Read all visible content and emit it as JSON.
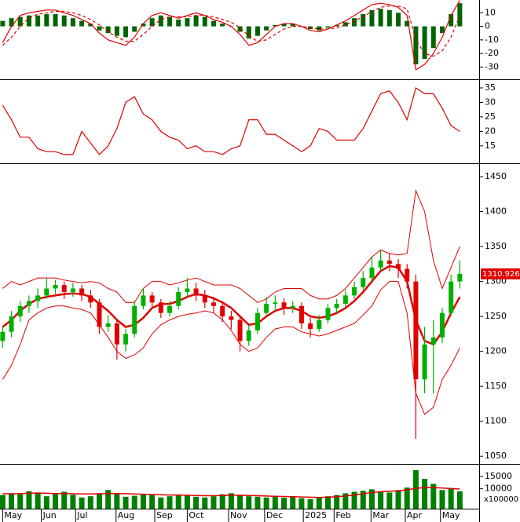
{
  "chart_data": [
    {
      "type": "macd",
      "ylim": [
        -39,
        19.4
      ],
      "yticks": [
        10,
        0,
        -10,
        -20,
        -30
      ],
      "bars": {
        "color": "#006400",
        "values": [
          4,
          6,
          7,
          8,
          8,
          9,
          9,
          8,
          6,
          4,
          2,
          -3,
          -5,
          -7,
          -8,
          -4,
          2,
          6,
          8,
          7,
          5,
          6,
          8,
          7,
          4,
          2,
          0,
          -4,
          -9,
          -7,
          -3,
          1,
          2,
          2,
          0,
          -2,
          -3,
          -1,
          1,
          3,
          6,
          9,
          12,
          13,
          12,
          10,
          4,
          -28,
          -24,
          -16,
          -5,
          9,
          17
        ]
      },
      "series": [
        {
          "color": "#e00000",
          "dashed": false,
          "values": [
            -12,
            0,
            8,
            10,
            11,
            12,
            12,
            10,
            8,
            5,
            2,
            -5,
            -10,
            -12,
            -14,
            -8,
            2,
            8,
            10,
            8,
            6,
            8,
            10,
            8,
            5,
            3,
            0,
            -6,
            -14,
            -12,
            -6,
            0,
            2,
            2,
            0,
            -3,
            -4,
            -2,
            1,
            4,
            8,
            12,
            16,
            17,
            16,
            14,
            8,
            -32,
            -28,
            -20,
            -8,
            8,
            19
          ]
        },
        {
          "color": "#e00000",
          "dashed": true,
          "values": [
            -14,
            -8,
            0,
            6,
            9,
            10,
            11,
            11,
            10,
            8,
            5,
            1,
            -4,
            -8,
            -11,
            -11,
            -6,
            0,
            5,
            7,
            7,
            7,
            8,
            8,
            7,
            5,
            3,
            -1,
            -7,
            -11,
            -10,
            -6,
            -2,
            0,
            0,
            -1,
            -2,
            -2,
            -1,
            1,
            4,
            7,
            11,
            14,
            15,
            15,
            13,
            -10,
            -20,
            -22,
            -18,
            -8,
            8
          ]
        }
      ]
    },
    {
      "type": "line",
      "ylim": [
        9,
        37.7
      ],
      "yticks": [
        35,
        30,
        25,
        20,
        15
      ],
      "series": [
        {
          "color": "#e00000",
          "dashed": false,
          "values": [
            29,
            24,
            18,
            18,
            14,
            13,
            13,
            12,
            12,
            20,
            16,
            12,
            15,
            21,
            30,
            32,
            26,
            24,
            20,
            18,
            17,
            14,
            15,
            13,
            13,
            12,
            14,
            15,
            24,
            24,
            19,
            19,
            17,
            15,
            13,
            15,
            21,
            20,
            17,
            17,
            17,
            21,
            27,
            33,
            34,
            30,
            24,
            35,
            33,
            33,
            28,
            22,
            20
          ]
        }
      ]
    },
    {
      "type": "candlestick",
      "ylim": [
        1039,
        1468
      ],
      "yticks": [
        1450,
        1400,
        1350,
        1300,
        1250,
        1200,
        1150,
        1100,
        1050
      ],
      "up_color": "#00b000",
      "down_color": "#e00000",
      "candles": [
        [
          1215,
          1235,
          1205,
          1228
        ],
        [
          1228,
          1258,
          1220,
          1250
        ],
        [
          1250,
          1272,
          1242,
          1265
        ],
        [
          1265,
          1280,
          1255,
          1272
        ],
        [
          1272,
          1290,
          1262,
          1280
        ],
        [
          1280,
          1305,
          1275,
          1290
        ],
        [
          1290,
          1302,
          1282,
          1295
        ],
        [
          1295,
          1300,
          1275,
          1285
        ],
        [
          1285,
          1298,
          1278,
          1290
        ],
        [
          1290,
          1295,
          1272,
          1280
        ],
        [
          1280,
          1288,
          1262,
          1270
        ],
        [
          1270,
          1275,
          1225,
          1235
        ],
        [
          1235,
          1252,
          1228,
          1240
        ],
        [
          1240,
          1245,
          1188,
          1210
        ],
        [
          1210,
          1232,
          1200,
          1225
        ],
        [
          1225,
          1272,
          1220,
          1265
        ],
        [
          1265,
          1290,
          1260,
          1280
        ],
        [
          1280,
          1285,
          1262,
          1270
        ],
        [
          1270,
          1275,
          1248,
          1255
        ],
        [
          1255,
          1272,
          1250,
          1265
        ],
        [
          1265,
          1292,
          1260,
          1285
        ],
        [
          1285,
          1305,
          1278,
          1290
        ],
        [
          1290,
          1298,
          1272,
          1280
        ],
        [
          1280,
          1288,
          1262,
          1270
        ],
        [
          1270,
          1278,
          1255,
          1265
        ],
        [
          1265,
          1272,
          1242,
          1250
        ],
        [
          1250,
          1258,
          1232,
          1245
        ],
        [
          1245,
          1250,
          1200,
          1215
        ],
        [
          1215,
          1238,
          1208,
          1230
        ],
        [
          1230,
          1262,
          1225,
          1255
        ],
        [
          1255,
          1278,
          1250,
          1268
        ],
        [
          1268,
          1280,
          1258,
          1270
        ],
        [
          1270,
          1276,
          1252,
          1262
        ],
        [
          1262,
          1272,
          1255,
          1265
        ],
        [
          1265,
          1270,
          1232,
          1240
        ],
        [
          1240,
          1248,
          1220,
          1232
        ],
        [
          1232,
          1252,
          1228,
          1245
        ],
        [
          1245,
          1268,
          1240,
          1262
        ],
        [
          1262,
          1275,
          1255,
          1268
        ],
        [
          1268,
          1288,
          1262,
          1280
        ],
        [
          1280,
          1300,
          1275,
          1292
        ],
        [
          1292,
          1315,
          1288,
          1305
        ],
        [
          1305,
          1335,
          1300,
          1320
        ],
        [
          1320,
          1345,
          1315,
          1330
        ],
        [
          1330,
          1340,
          1315,
          1325
        ],
        [
          1325,
          1332,
          1305,
          1318
        ],
        [
          1318,
          1325,
          1290,
          1300
        ],
        [
          1300,
          1310,
          1075,
          1160
        ],
        [
          1160,
          1235,
          1140,
          1210
        ],
        [
          1210,
          1245,
          1140,
          1220
        ],
        [
          1220,
          1262,
          1212,
          1255
        ],
        [
          1255,
          1310,
          1250,
          1300
        ],
        [
          1300,
          1330,
          1290,
          1311
        ]
      ],
      "series": [
        {
          "color": "#e00000",
          "width": 2.5,
          "values": [
            1235,
            1245,
            1258,
            1268,
            1275,
            1278,
            1280,
            1282,
            1283,
            1282,
            1278,
            1268,
            1258,
            1245,
            1235,
            1238,
            1248,
            1262,
            1268,
            1268,
            1272,
            1278,
            1282,
            1280,
            1276,
            1270,
            1262,
            1250,
            1238,
            1240,
            1250,
            1258,
            1262,
            1262,
            1258,
            1250,
            1248,
            1250,
            1255,
            1262,
            1272,
            1285,
            1300,
            1315,
            1322,
            1320,
            1300,
            1245,
            1215,
            1210,
            1228,
            1255,
            1278
          ]
        },
        {
          "color": "#e00000",
          "width": 1,
          "values": [
            1290,
            1300,
            1295,
            1300,
            1305,
            1305,
            1305,
            1302,
            1300,
            1298,
            1300,
            1298,
            1290,
            1285,
            1270,
            1270,
            1290,
            1300,
            1300,
            1295,
            1298,
            1302,
            1305,
            1300,
            1295,
            1295,
            1295,
            1290,
            1280,
            1270,
            1275,
            1285,
            1290,
            1290,
            1290,
            1280,
            1275,
            1275,
            1280,
            1290,
            1305,
            1320,
            1335,
            1345,
            1340,
            1338,
            1340,
            1430,
            1400,
            1330,
            1290,
            1320,
            1350
          ]
        },
        {
          "color": "#e00000",
          "width": 1,
          "values": [
            1160,
            1180,
            1210,
            1245,
            1255,
            1262,
            1265,
            1265,
            1262,
            1260,
            1255,
            1238,
            1220,
            1200,
            1190,
            1195,
            1205,
            1225,
            1238,
            1245,
            1250,
            1253,
            1255,
            1258,
            1255,
            1245,
            1230,
            1210,
            1200,
            1205,
            1220,
            1232,
            1235,
            1235,
            1228,
            1225,
            1222,
            1225,
            1230,
            1235,
            1240,
            1252,
            1265,
            1288,
            1300,
            1300,
            1255,
            1140,
            1110,
            1120,
            1160,
            1180,
            1205
          ]
        }
      ],
      "last_price": 1310.926,
      "last_price_color": "#e00000"
    },
    {
      "type": "volume",
      "ylim": [
        2000,
        19700
      ],
      "yticks": [
        15000,
        10000
      ],
      "unit_label": "x100000",
      "bars": {
        "color": "#008000",
        "values": [
          7500,
          8000,
          7800,
          9000,
          8500,
          7000,
          8200,
          8800,
          7600,
          6500,
          7000,
          8200,
          9500,
          8000,
          6800,
          7200,
          8000,
          7500,
          6500,
          7000,
          7600,
          7200,
          6800,
          6500,
          7000,
          7800,
          8200,
          7500,
          7000,
          6800,
          6500,
          7000,
          6400,
          6800,
          6200,
          5800,
          6500,
          7000,
          7500,
          8200,
          8800,
          9200,
          9800,
          9000,
          8500,
          9500,
          10500,
          17500,
          14000,
          12000,
          9500,
          10000,
          9000
        ]
      },
      "series": [
        {
          "color": "#e00000",
          "width": 1.5,
          "values": [
            8000,
            8000,
            8100,
            8200,
            8300,
            8200,
            8100,
            8100,
            8000,
            7900,
            7900,
            8000,
            8100,
            8100,
            8000,
            7900,
            7800,
            7700,
            7600,
            7500,
            7500,
            7400,
            7300,
            7200,
            7200,
            7300,
            7400,
            7400,
            7300,
            7200,
            7100,
            7000,
            6900,
            6800,
            6700,
            6600,
            6500,
            6600,
            6800,
            7100,
            7500,
            8000,
            8500,
            8800,
            9000,
            9200,
            9600,
            10200,
            10500,
            10500,
            10300,
            10100,
            9900
          ]
        }
      ],
      "xlim": [
        -0.3,
        54.2
      ],
      "xticks": [
        {
          "value": 0,
          "label": "May"
        },
        {
          "value": 4.4,
          "label": "Jun"
        },
        {
          "value": 8.3,
          "label": "Jul"
        },
        {
          "value": 12.9,
          "label": "Aug"
        },
        {
          "value": 17.3,
          "label": "Sep"
        },
        {
          "value": 21,
          "label": "Oct"
        },
        {
          "value": 25.7,
          "label": "Nov"
        },
        {
          "value": 29.8,
          "label": "Dec"
        },
        {
          "value": 34.2,
          "label": "2025"
        },
        {
          "value": 37.7,
          "label": "Feb"
        },
        {
          "value": 41.9,
          "label": "Mar"
        },
        {
          "value": 45.8,
          "label": "Apr"
        },
        {
          "value": 49.8,
          "label": "May"
        }
      ]
    }
  ]
}
